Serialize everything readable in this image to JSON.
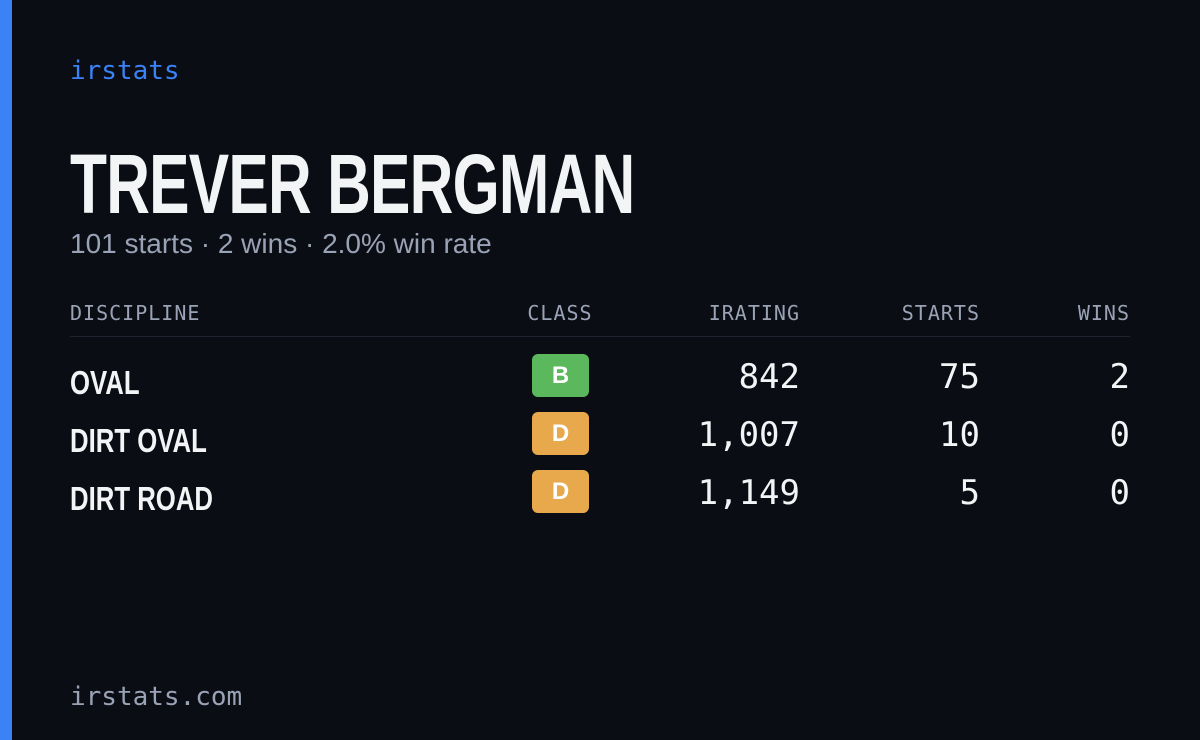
{
  "brand": "irstats",
  "driver": {
    "name": "TREVER BERGMAN",
    "summary": "101 starts · 2 wins · 2.0% win rate"
  },
  "table": {
    "headers": [
      "DISCIPLINE",
      "CLASS",
      "IRATING",
      "STARTS",
      "WINS"
    ],
    "rows": [
      {
        "discipline": "OVAL",
        "class": "B",
        "class_color": "#5cb85c",
        "irating": "842",
        "starts": 75,
        "wins": 2
      },
      {
        "discipline": "DIRT OVAL",
        "class": "D",
        "class_color": "#e8a94c",
        "irating": "1,007",
        "starts": 10,
        "wins": 0
      },
      {
        "discipline": "DIRT ROAD",
        "class": "D",
        "class_color": "#e8a94c",
        "irating": "1,149",
        "starts": 5,
        "wins": 0
      }
    ]
  },
  "footer": "irstats.com"
}
